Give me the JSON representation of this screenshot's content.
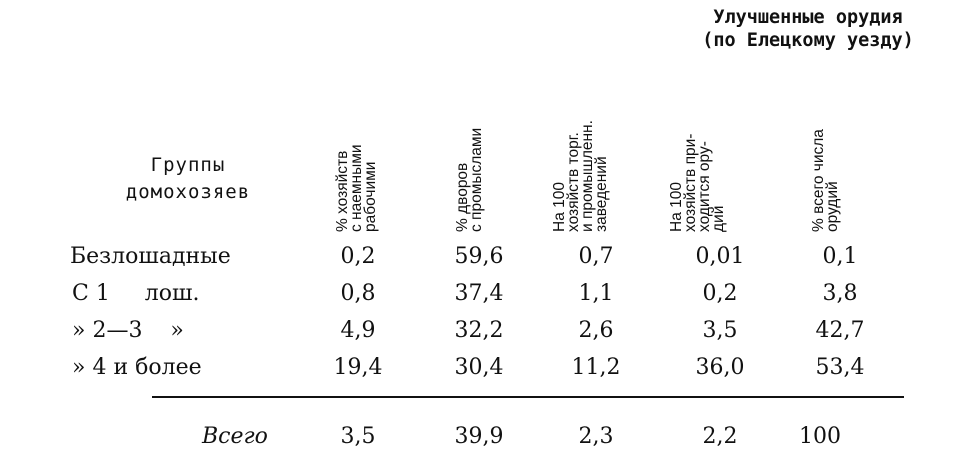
{
  "headers": {
    "groups": "Группы\nдомохозяев",
    "improved_tools": "Улучшенные орудия\n(по Елецкому уезду)",
    "columns": [
      "% хозяйств\nс наемными\nрабочими",
      "% дворов\nс промыслами",
      "На 100\nхозяйств торг.\nи промышленн.\nзаведений",
      "На 100\nхозяйств при-\nходится ору-\nдий",
      "% всего числа\nорудий"
    ]
  },
  "rows": [
    {
      "label": "Безлошадные",
      "values": [
        "0,2",
        "59,6",
        "0,7",
        "0,01",
        "0,1"
      ]
    },
    {
      "label": "С 1     лош.",
      "values": [
        "0,8",
        "37,4",
        "1,1",
        "0,2",
        "3,8"
      ]
    },
    {
      "label": "» 2—3    »",
      "values": [
        "4,9",
        "32,2",
        "2,6",
        "3,5",
        "42,7"
      ]
    },
    {
      "label": "» 4 и более",
      "values": [
        "19,4",
        "30,4",
        "11,2",
        "36,0",
        "53,4"
      ]
    }
  ],
  "total": {
    "label": "Всего",
    "values": [
      "3,5",
      "39,9",
      "2,3",
      "2,2",
      "100"
    ]
  }
}
